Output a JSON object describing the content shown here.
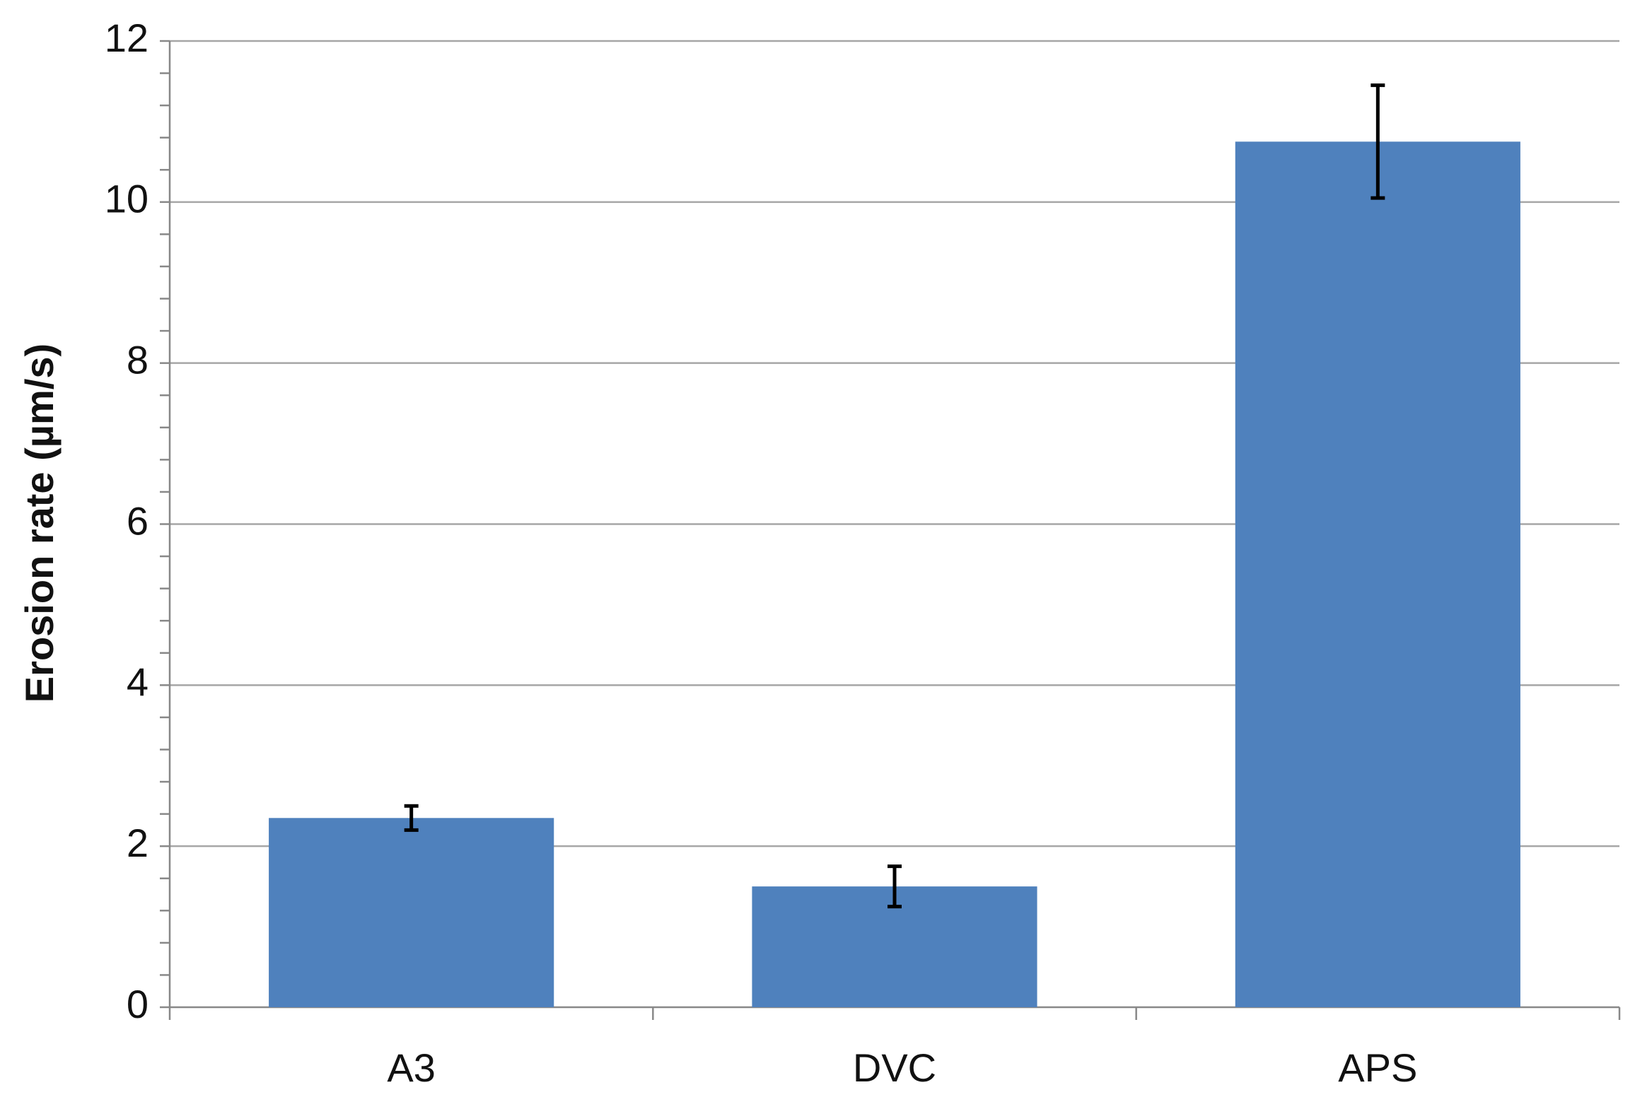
{
  "chart_data": {
    "type": "bar",
    "ylabel": "Erosion rate (µm/s)",
    "categories": [
      "A3",
      "DVC",
      "APS"
    ],
    "values": [
      2.35,
      1.5,
      10.75
    ],
    "errors": [
      0.15,
      0.25,
      0.7
    ],
    "color": "#4f81bd",
    "ylim": [
      0,
      12
    ],
    "yticks": [
      0,
      2,
      4,
      6,
      8,
      10,
      12
    ],
    "grid": true
  }
}
